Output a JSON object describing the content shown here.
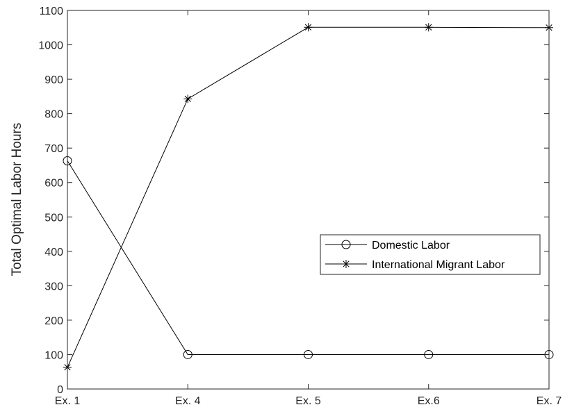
{
  "chart_data": {
    "type": "line",
    "categories": [
      "Ex. 1",
      "Ex. 4",
      "Ex. 5",
      "Ex.6",
      "Ex. 7"
    ],
    "series": [
      {
        "name": "Domestic Labor",
        "marker": "circle",
        "values": [
          663,
          100,
          100,
          100,
          100
        ]
      },
      {
        "name": "International Migrant Labor",
        "marker": "asterisk",
        "values": [
          63,
          843,
          1051,
          1051,
          1050
        ]
      }
    ],
    "title": "",
    "xlabel": "",
    "ylabel": "Total Optimal Labor Hours",
    "ylim": [
      0,
      1100
    ],
    "yticks": [
      0,
      100,
      200,
      300,
      400,
      500,
      600,
      700,
      800,
      900,
      1000,
      1100
    ],
    "grid": false,
    "legend_position": "center-right",
    "line_color": "#000000"
  }
}
